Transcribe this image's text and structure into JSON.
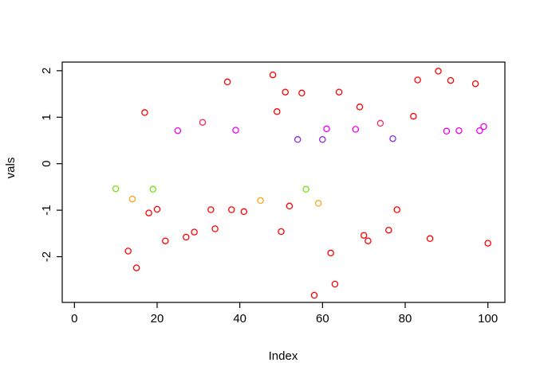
{
  "chart_data": {
    "type": "scatter",
    "title": "",
    "xlabel": "Index",
    "ylabel": "vals",
    "x_ticks": [
      0,
      20,
      40,
      60,
      80,
      100
    ],
    "y_ticks": [
      -2,
      -1,
      0,
      1,
      2
    ],
    "xlim": [
      -3,
      104
    ],
    "ylim": [
      -2.98,
      2.18
    ],
    "grid": false,
    "legend": "none",
    "marker": "open-circle",
    "colors": {
      "red": "#FF0000",
      "crimson": "#F22C5B",
      "magenta": "#EE00EE",
      "purple": "#8A2BE2",
      "green": "#7CDE14",
      "orange": "#FFA51E"
    },
    "points": [
      {
        "x": 10,
        "y": -0.54,
        "c": "green"
      },
      {
        "x": 13,
        "y": -1.88,
        "c": "red"
      },
      {
        "x": 14,
        "y": -0.76,
        "c": "orange"
      },
      {
        "x": 15,
        "y": -2.24,
        "c": "red"
      },
      {
        "x": 17,
        "y": 1.1,
        "c": "red"
      },
      {
        "x": 18,
        "y": -1.06,
        "c": "red"
      },
      {
        "x": 19,
        "y": -0.55,
        "c": "green"
      },
      {
        "x": 20,
        "y": -0.98,
        "c": "red"
      },
      {
        "x": 22,
        "y": -1.66,
        "c": "red"
      },
      {
        "x": 25,
        "y": 0.71,
        "c": "magenta"
      },
      {
        "x": 27,
        "y": -1.58,
        "c": "red"
      },
      {
        "x": 29,
        "y": -1.47,
        "c": "red"
      },
      {
        "x": 31,
        "y": 0.89,
        "c": "crimson"
      },
      {
        "x": 33,
        "y": -0.99,
        "c": "red"
      },
      {
        "x": 34,
        "y": -1.4,
        "c": "red"
      },
      {
        "x": 37,
        "y": 1.76,
        "c": "red"
      },
      {
        "x": 38,
        "y": -0.99,
        "c": "red"
      },
      {
        "x": 39,
        "y": 0.72,
        "c": "magenta"
      },
      {
        "x": 41,
        "y": -1.03,
        "c": "red"
      },
      {
        "x": 45,
        "y": -0.79,
        "c": "orange"
      },
      {
        "x": 48,
        "y": 1.91,
        "c": "red"
      },
      {
        "x": 49,
        "y": 1.12,
        "c": "red"
      },
      {
        "x": 50,
        "y": -1.46,
        "c": "red"
      },
      {
        "x": 51,
        "y": 1.54,
        "c": "red"
      },
      {
        "x": 52,
        "y": -0.91,
        "c": "red"
      },
      {
        "x": 54,
        "y": 0.52,
        "c": "purple"
      },
      {
        "x": 55,
        "y": 1.52,
        "c": "red"
      },
      {
        "x": 56,
        "y": -0.55,
        "c": "green"
      },
      {
        "x": 58,
        "y": -2.83,
        "c": "red"
      },
      {
        "x": 59,
        "y": -0.85,
        "c": "orange"
      },
      {
        "x": 60,
        "y": 0.52,
        "c": "purple"
      },
      {
        "x": 61,
        "y": 0.75,
        "c": "magenta"
      },
      {
        "x": 62,
        "y": -1.92,
        "c": "red"
      },
      {
        "x": 63,
        "y": -2.59,
        "c": "red"
      },
      {
        "x": 64,
        "y": 1.54,
        "c": "red"
      },
      {
        "x": 68,
        "y": 0.74,
        "c": "magenta"
      },
      {
        "x": 69,
        "y": 1.22,
        "c": "red"
      },
      {
        "x": 70,
        "y": -1.54,
        "c": "red"
      },
      {
        "x": 71,
        "y": -1.66,
        "c": "red"
      },
      {
        "x": 74,
        "y": 0.87,
        "c": "crimson"
      },
      {
        "x": 76,
        "y": -1.43,
        "c": "red"
      },
      {
        "x": 77,
        "y": 0.54,
        "c": "purple"
      },
      {
        "x": 78,
        "y": -0.99,
        "c": "red"
      },
      {
        "x": 82,
        "y": 1.02,
        "c": "red"
      },
      {
        "x": 83,
        "y": 1.8,
        "c": "red"
      },
      {
        "x": 86,
        "y": -1.61,
        "c": "red"
      },
      {
        "x": 88,
        "y": 1.99,
        "c": "red"
      },
      {
        "x": 90,
        "y": 0.7,
        "c": "magenta"
      },
      {
        "x": 91,
        "y": 1.79,
        "c": "red"
      },
      {
        "x": 93,
        "y": 0.71,
        "c": "magenta"
      },
      {
        "x": 97,
        "y": 1.72,
        "c": "red"
      },
      {
        "x": 98,
        "y": 0.71,
        "c": "magenta"
      },
      {
        "x": 99,
        "y": 0.8,
        "c": "magenta"
      },
      {
        "x": 100,
        "y": -1.71,
        "c": "red"
      }
    ]
  }
}
